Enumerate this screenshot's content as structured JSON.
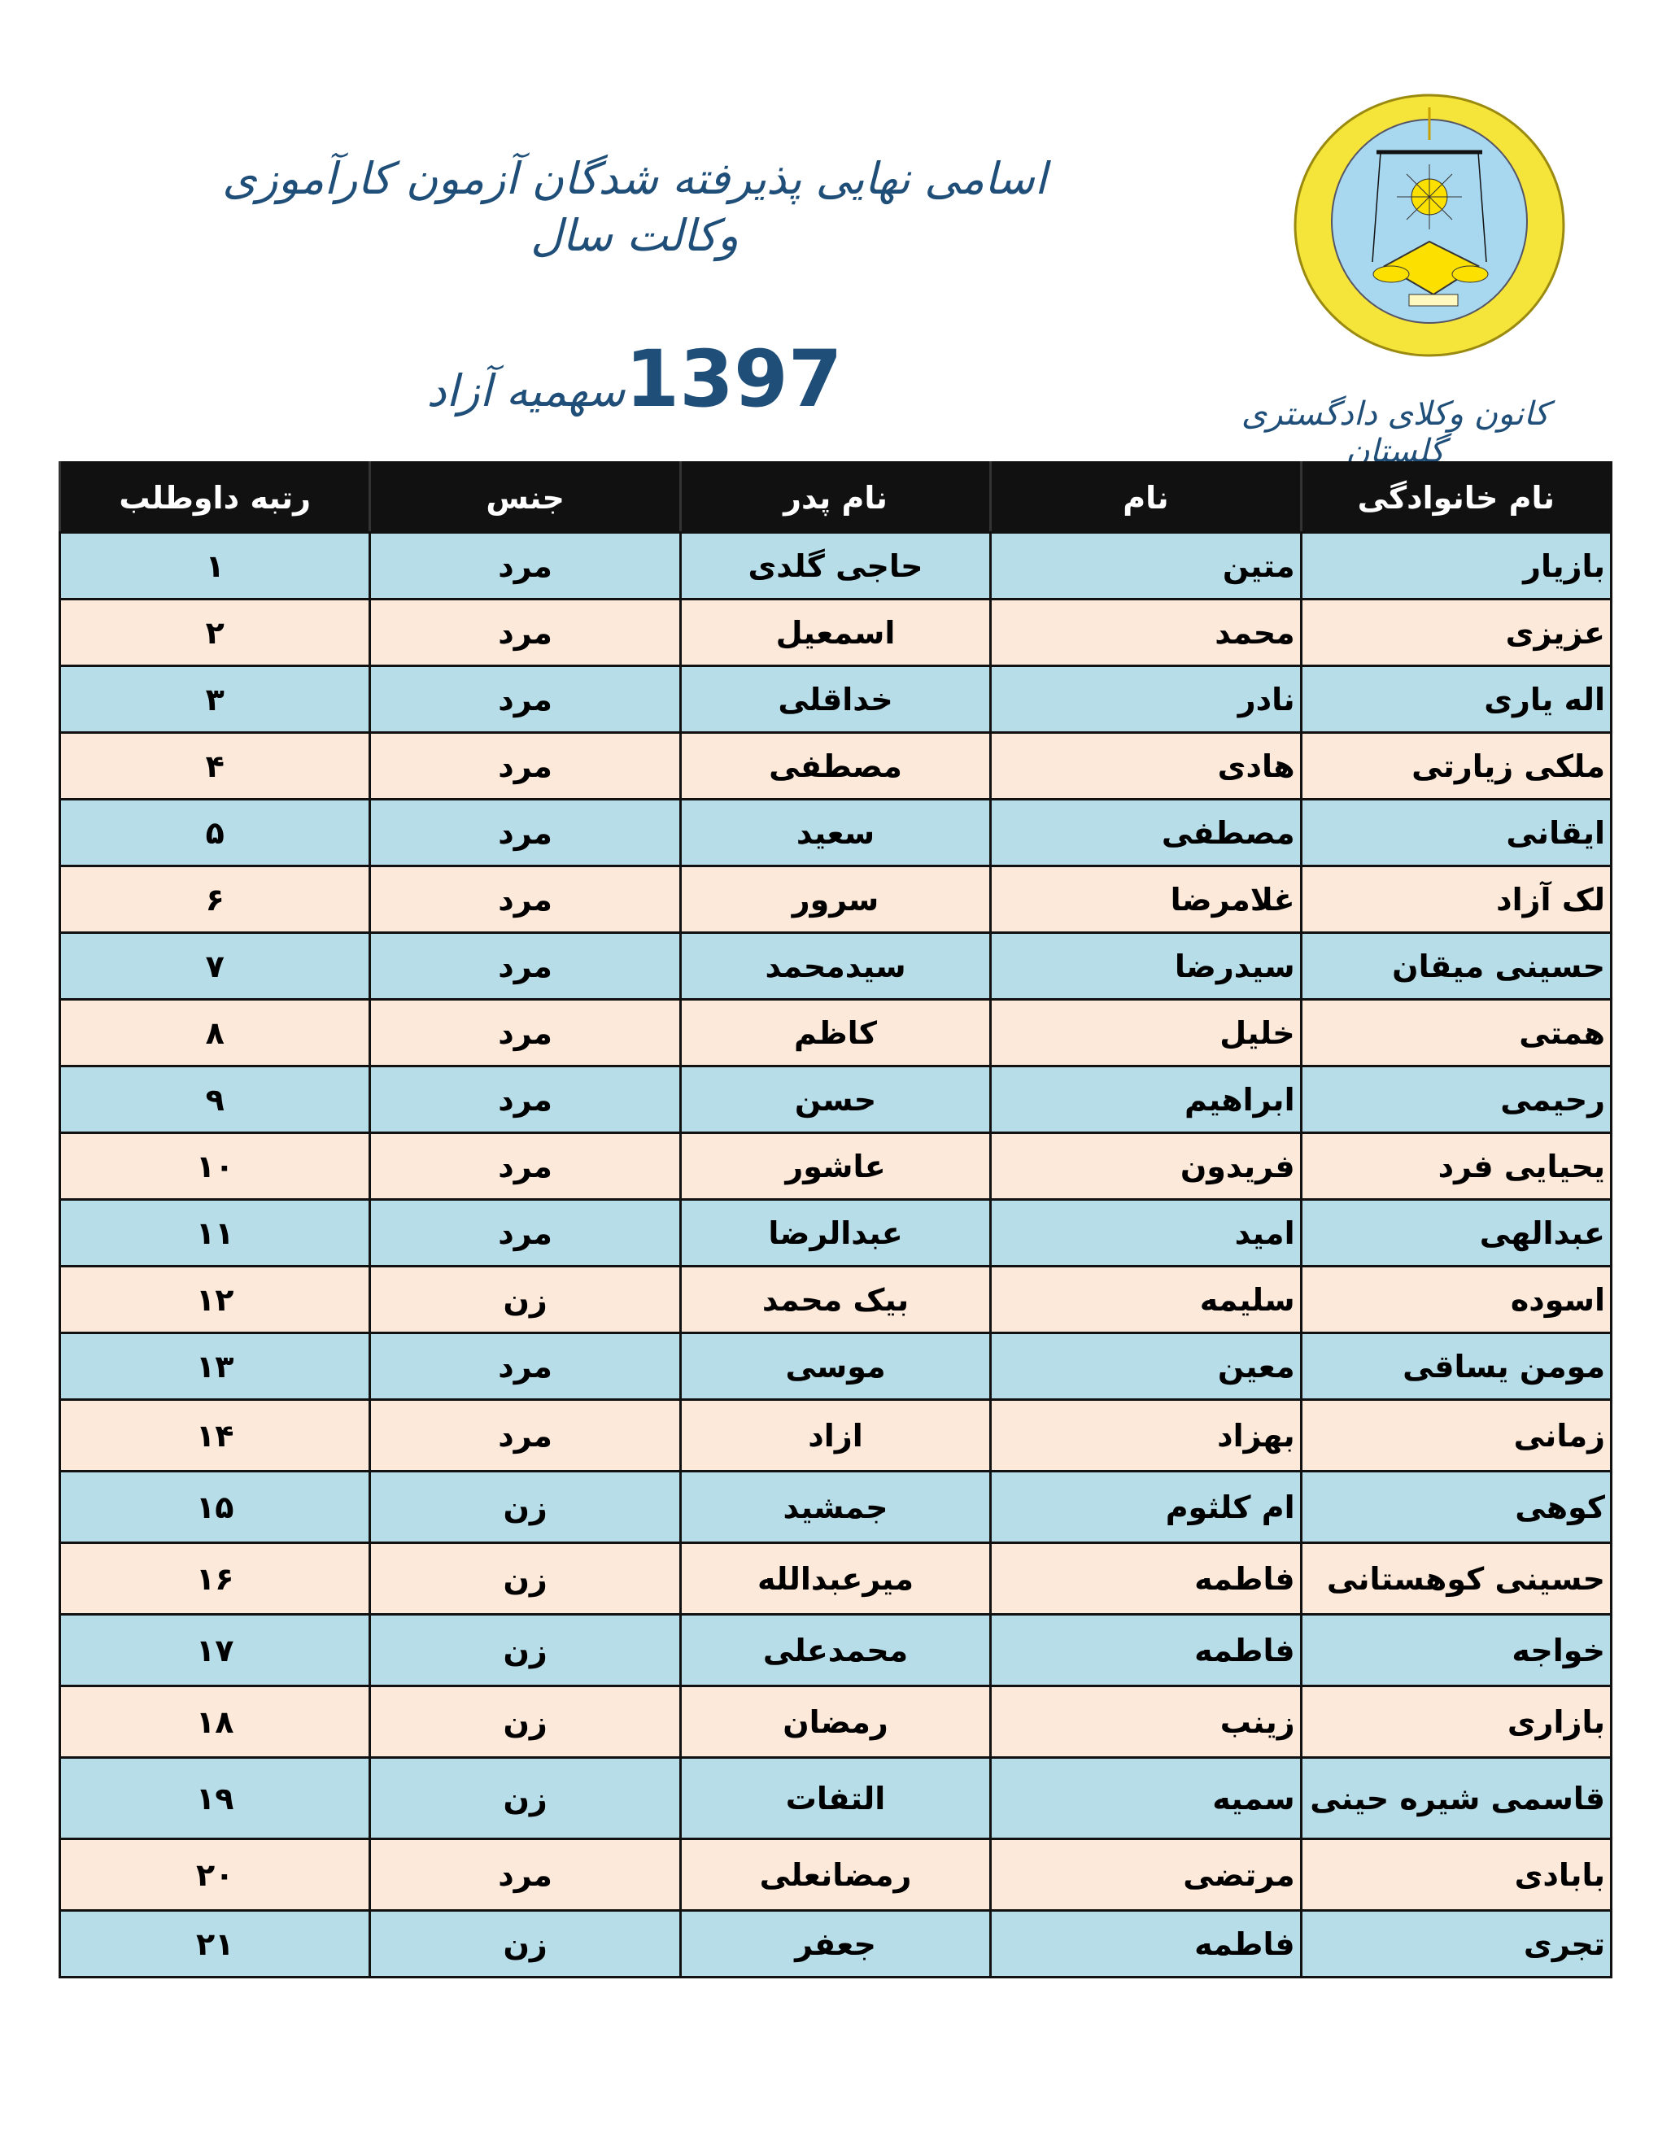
{
  "header": {
    "title": "اسامی نهایی پذیرفته شدگان آزمون کارآموزی وکالت سال",
    "year": "1397",
    "quota": "سهمیه آزاد",
    "organization": "کانون وکلای دادگستری گلستان",
    "logo_colors": {
      "wreath": "#f5e43a",
      "field": "#a8d8ef"
    }
  },
  "table": {
    "columns": [
      "نام خانوادگی",
      "نام",
      "نام پدر",
      "جنس",
      "رتبه داوطلب"
    ],
    "row_colors": [
      "#b7dde8",
      "#fde9d9"
    ],
    "rows": [
      [
        "بازیار",
        "متین",
        "حاجی گلدی",
        "مرد",
        "۱"
      ],
      [
        "عزیزی",
        "محمد",
        "اسمعیل",
        "مرد",
        "۲"
      ],
      [
        "اله یاری",
        "نادر",
        "خداقلی",
        "مرد",
        "۳"
      ],
      [
        "ملکی زیارتی",
        "هادی",
        "مصطفی",
        "مرد",
        "۴"
      ],
      [
        "ایقانی",
        "مصطفی",
        "سعید",
        "مرد",
        "۵"
      ],
      [
        "لک آزاد",
        "غلامرضا",
        "سرور",
        "مرد",
        "۶"
      ],
      [
        "حسینی میقان",
        "سیدرضا",
        "سیدمحمد",
        "مرد",
        "۷"
      ],
      [
        "همتی",
        "خلیل",
        "کاظم",
        "مرد",
        "۸"
      ],
      [
        "رحیمی",
        "ابراهیم",
        "حسن",
        "مرد",
        "۹"
      ],
      [
        "یحیایی فرد",
        "فریدون",
        "عاشور",
        "مرد",
        "۱۰"
      ],
      [
        "عبدالهی",
        "امید",
        "عبدالرضا",
        "مرد",
        "۱۱"
      ],
      [
        "اسوده",
        "سلیمه",
        "بیک محمد",
        "زن",
        "۱۲"
      ],
      [
        "مومن یساقی",
        "معین",
        "موسی",
        "مرد",
        "۱۳"
      ],
      [
        "زمانی",
        "بهزاد",
        "ازاد",
        "مرد",
        "۱۴"
      ],
      [
        "کوهی",
        "ام کلثوم",
        "جمشید",
        "زن",
        "۱۵"
      ],
      [
        "حسینی کوهستانی",
        "فاطمه",
        "میرعبدالله",
        "زن",
        "۱۶"
      ],
      [
        "خواجه",
        "فاطمه",
        "محمدعلی",
        "زن",
        "۱۷"
      ],
      [
        "بازاری",
        "زینب",
        "رمضان",
        "زن",
        "۱۸"
      ],
      [
        "قاسمی شیره حینی",
        "سمیه",
        "التفات",
        "زن",
        "۱۹"
      ],
      [
        "بابادی",
        "مرتضی",
        "رمضانعلی",
        "مرد",
        "۲۰"
      ],
      [
        "تجری",
        "فاطمه",
        "جعفر",
        "زن",
        "۲۱"
      ]
    ]
  }
}
